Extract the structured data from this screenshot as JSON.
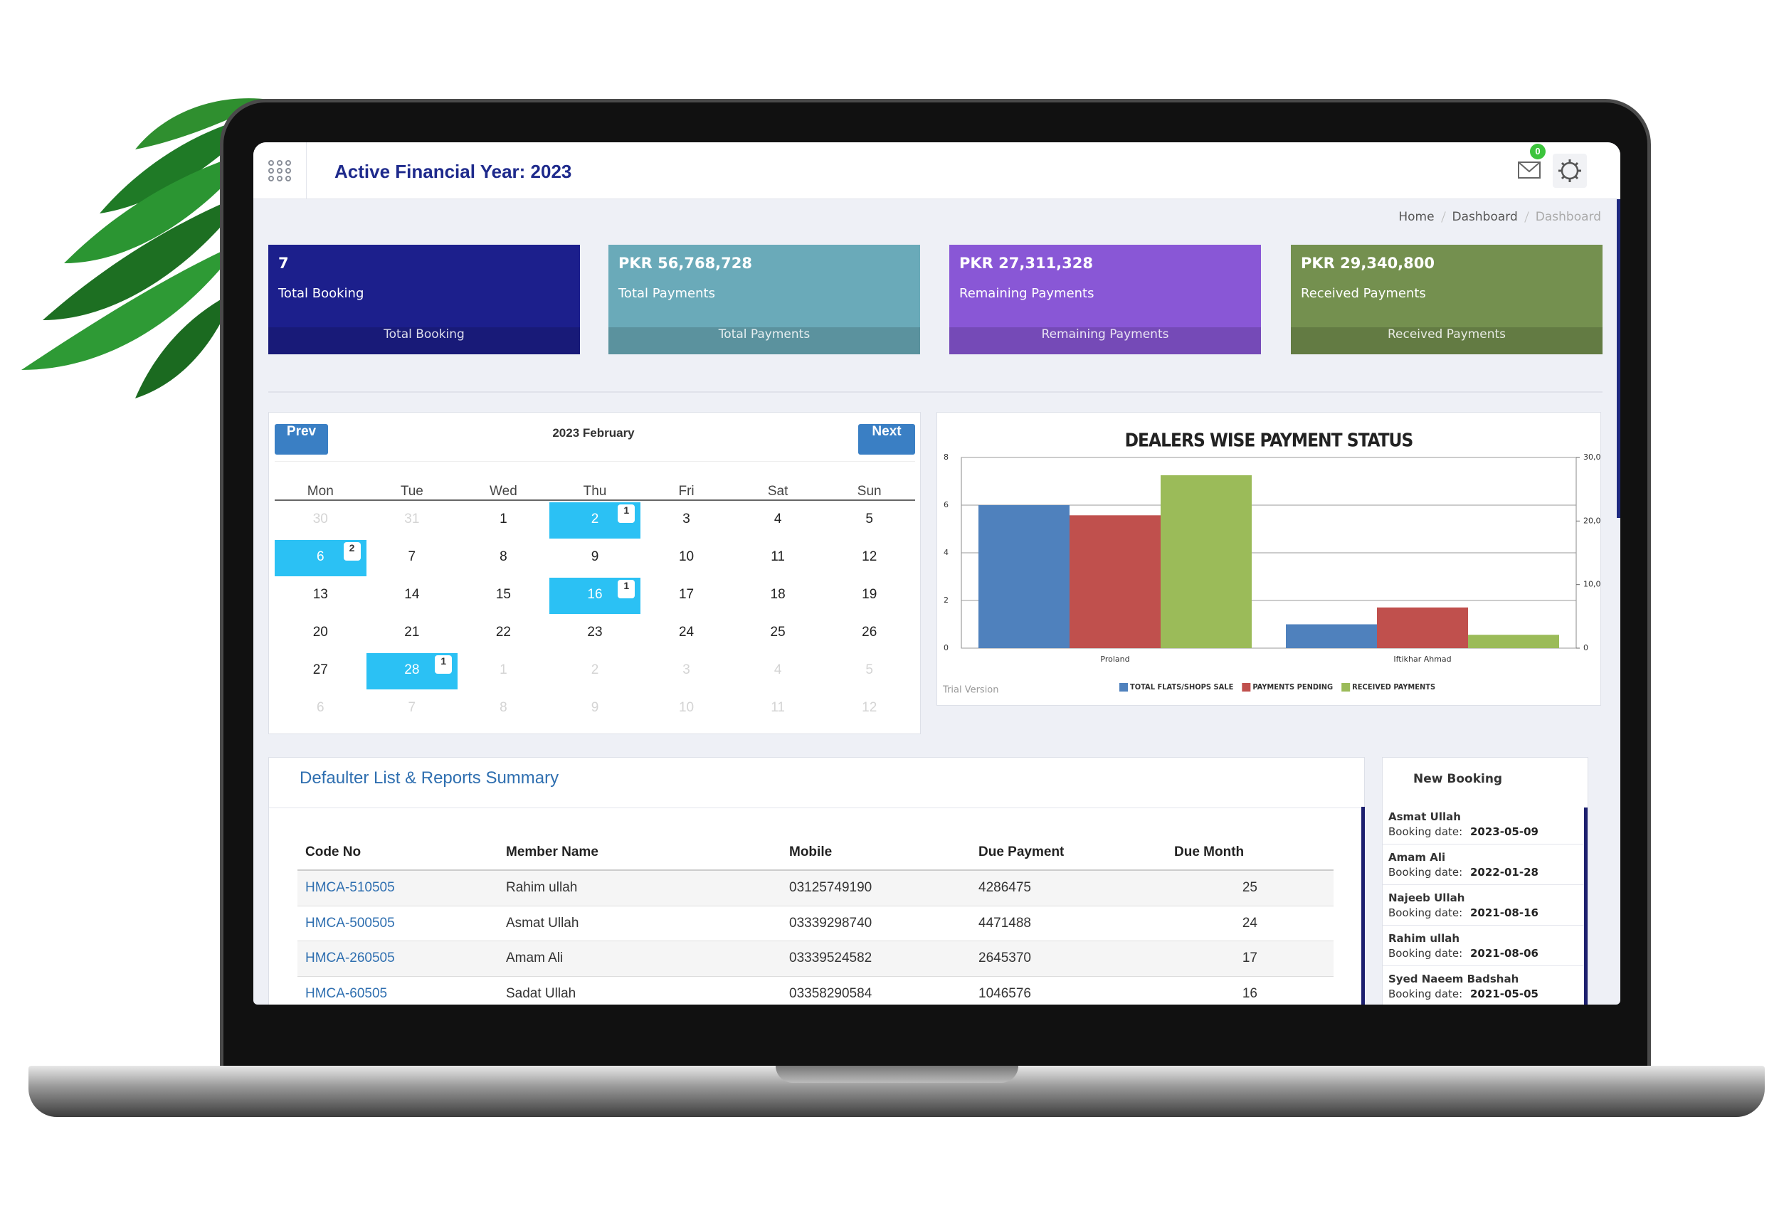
{
  "header": {
    "title": "Active Financial Year: 2023",
    "notification_count": 0
  },
  "breadcrumb": [
    "Home",
    "Dashboard",
    "Dashboard"
  ],
  "cards": [
    {
      "value": "7",
      "label": "Total Booking",
      "footer": "Total Booking",
      "color": "#1c1f8c"
    },
    {
      "value": "PKR 56,768,728",
      "label": "Total Payments",
      "footer": "Total Payments",
      "color": "#6aaab9"
    },
    {
      "value": "PKR 27,311,328",
      "label": "Remaining Payments",
      "footer": "Remaining Payments",
      "color": "#8957d6"
    },
    {
      "value": "PKR 29,340,800",
      "label": "Received Payments",
      "footer": "Received Payments",
      "color": "#74904f"
    }
  ],
  "calendar": {
    "title": "2023 February",
    "prev": "Prev",
    "next": "Next",
    "weekdays": [
      "Mon",
      "Tue",
      "Wed",
      "Thu",
      "Fri",
      "Sat",
      "Sun"
    ],
    "weeks": [
      [
        {
          "day": 30,
          "muted": true
        },
        {
          "day": 31,
          "muted": true
        },
        {
          "day": 1
        },
        {
          "day": 2,
          "bookings": 1
        },
        {
          "day": 3
        },
        {
          "day": 4
        },
        {
          "day": 5
        }
      ],
      [
        {
          "day": 6,
          "bookings": 2
        },
        {
          "day": 7
        },
        {
          "day": 8
        },
        {
          "day": 9
        },
        {
          "day": 10
        },
        {
          "day": 11
        },
        {
          "day": 12
        }
      ],
      [
        {
          "day": 13
        },
        {
          "day": 14
        },
        {
          "day": 15
        },
        {
          "day": 16,
          "bookings": 1
        },
        {
          "day": 17
        },
        {
          "day": 18
        },
        {
          "day": 19
        }
      ],
      [
        {
          "day": 20
        },
        {
          "day": 21
        },
        {
          "day": 22
        },
        {
          "day": 23
        },
        {
          "day": 24
        },
        {
          "day": 25
        },
        {
          "day": 26
        }
      ],
      [
        {
          "day": 27
        },
        {
          "day": 28,
          "bookings": 1
        },
        {
          "day": 1,
          "muted": true
        },
        {
          "day": 2,
          "muted": true
        },
        {
          "day": 3,
          "muted": true
        },
        {
          "day": 4,
          "muted": true
        },
        {
          "day": 5,
          "muted": true
        }
      ],
      [
        {
          "day": 6,
          "muted": true
        },
        {
          "day": 7,
          "muted": true
        },
        {
          "day": 8,
          "muted": true
        },
        {
          "day": 9,
          "muted": true
        },
        {
          "day": 10,
          "muted": true
        },
        {
          "day": 11,
          "muted": true
        },
        {
          "day": 12,
          "muted": true
        }
      ]
    ]
  },
  "chart_data": {
    "type": "bar",
    "title": "DEALERS WISE PAYMENT STATUS",
    "categories": [
      "Proland",
      "Iftikhar Ahmad"
    ],
    "series": [
      {
        "name": "TOTAL FLATS/SHOPS SALE",
        "color": "#4f81bd",
        "values": [
          6,
          1
        ]
      },
      {
        "name": "PAYMENTS PENDING",
        "color": "#c0504d",
        "values": [
          20900000,
          6400000
        ],
        "axis": "y2"
      },
      {
        "name": "RECEIVED PAYMENTS",
        "color": "#9bbb59",
        "values": [
          27200000,
          2100000
        ],
        "axis": "y2"
      }
    ],
    "ylim": [
      0,
      8
    ],
    "yticks": [
      0,
      2,
      4,
      6,
      8
    ],
    "y2lim": [
      0,
      30000000
    ],
    "y2ticks": [
      0,
      {
        "value": 10000000,
        "label": "10,0"
      },
      {
        "value": 20000000,
        "label": "20,0"
      },
      {
        "value": 30000000,
        "label": "30,0"
      }
    ],
    "grid": true,
    "legend": "bottom",
    "watermark": "Trial Version"
  },
  "defaulters": {
    "title": "Defaulter List & Reports Summary",
    "columns": [
      "Code No",
      "Member Name",
      "Mobile",
      "Due Payment",
      "Due Month"
    ],
    "rows": [
      [
        "HMCA-510505",
        "Rahim ullah",
        "03125749190",
        4286475,
        25
      ],
      [
        "HMCA-500505",
        "Asmat Ullah",
        "03339298740",
        4471488,
        24
      ],
      [
        "HMCA-260505",
        "Amam Ali",
        "03339524582",
        2645370,
        17
      ],
      [
        "HMCA-60505",
        "Sadat Ullah",
        "03358290584",
        1046576,
        16
      ]
    ]
  },
  "new_booking": {
    "title": "New Booking",
    "date_label": "Booking date:",
    "items": [
      {
        "name": "Asmat Ullah",
        "date": "2023-05-09"
      },
      {
        "name": "Amam Ali",
        "date": "2022-01-28"
      },
      {
        "name": "Najeeb Ullah",
        "date": "2021-08-16"
      },
      {
        "name": "Rahim ullah",
        "date": "2021-08-06"
      },
      {
        "name": "Syed Naeem Badshah",
        "date": "2021-05-05"
      }
    ]
  }
}
